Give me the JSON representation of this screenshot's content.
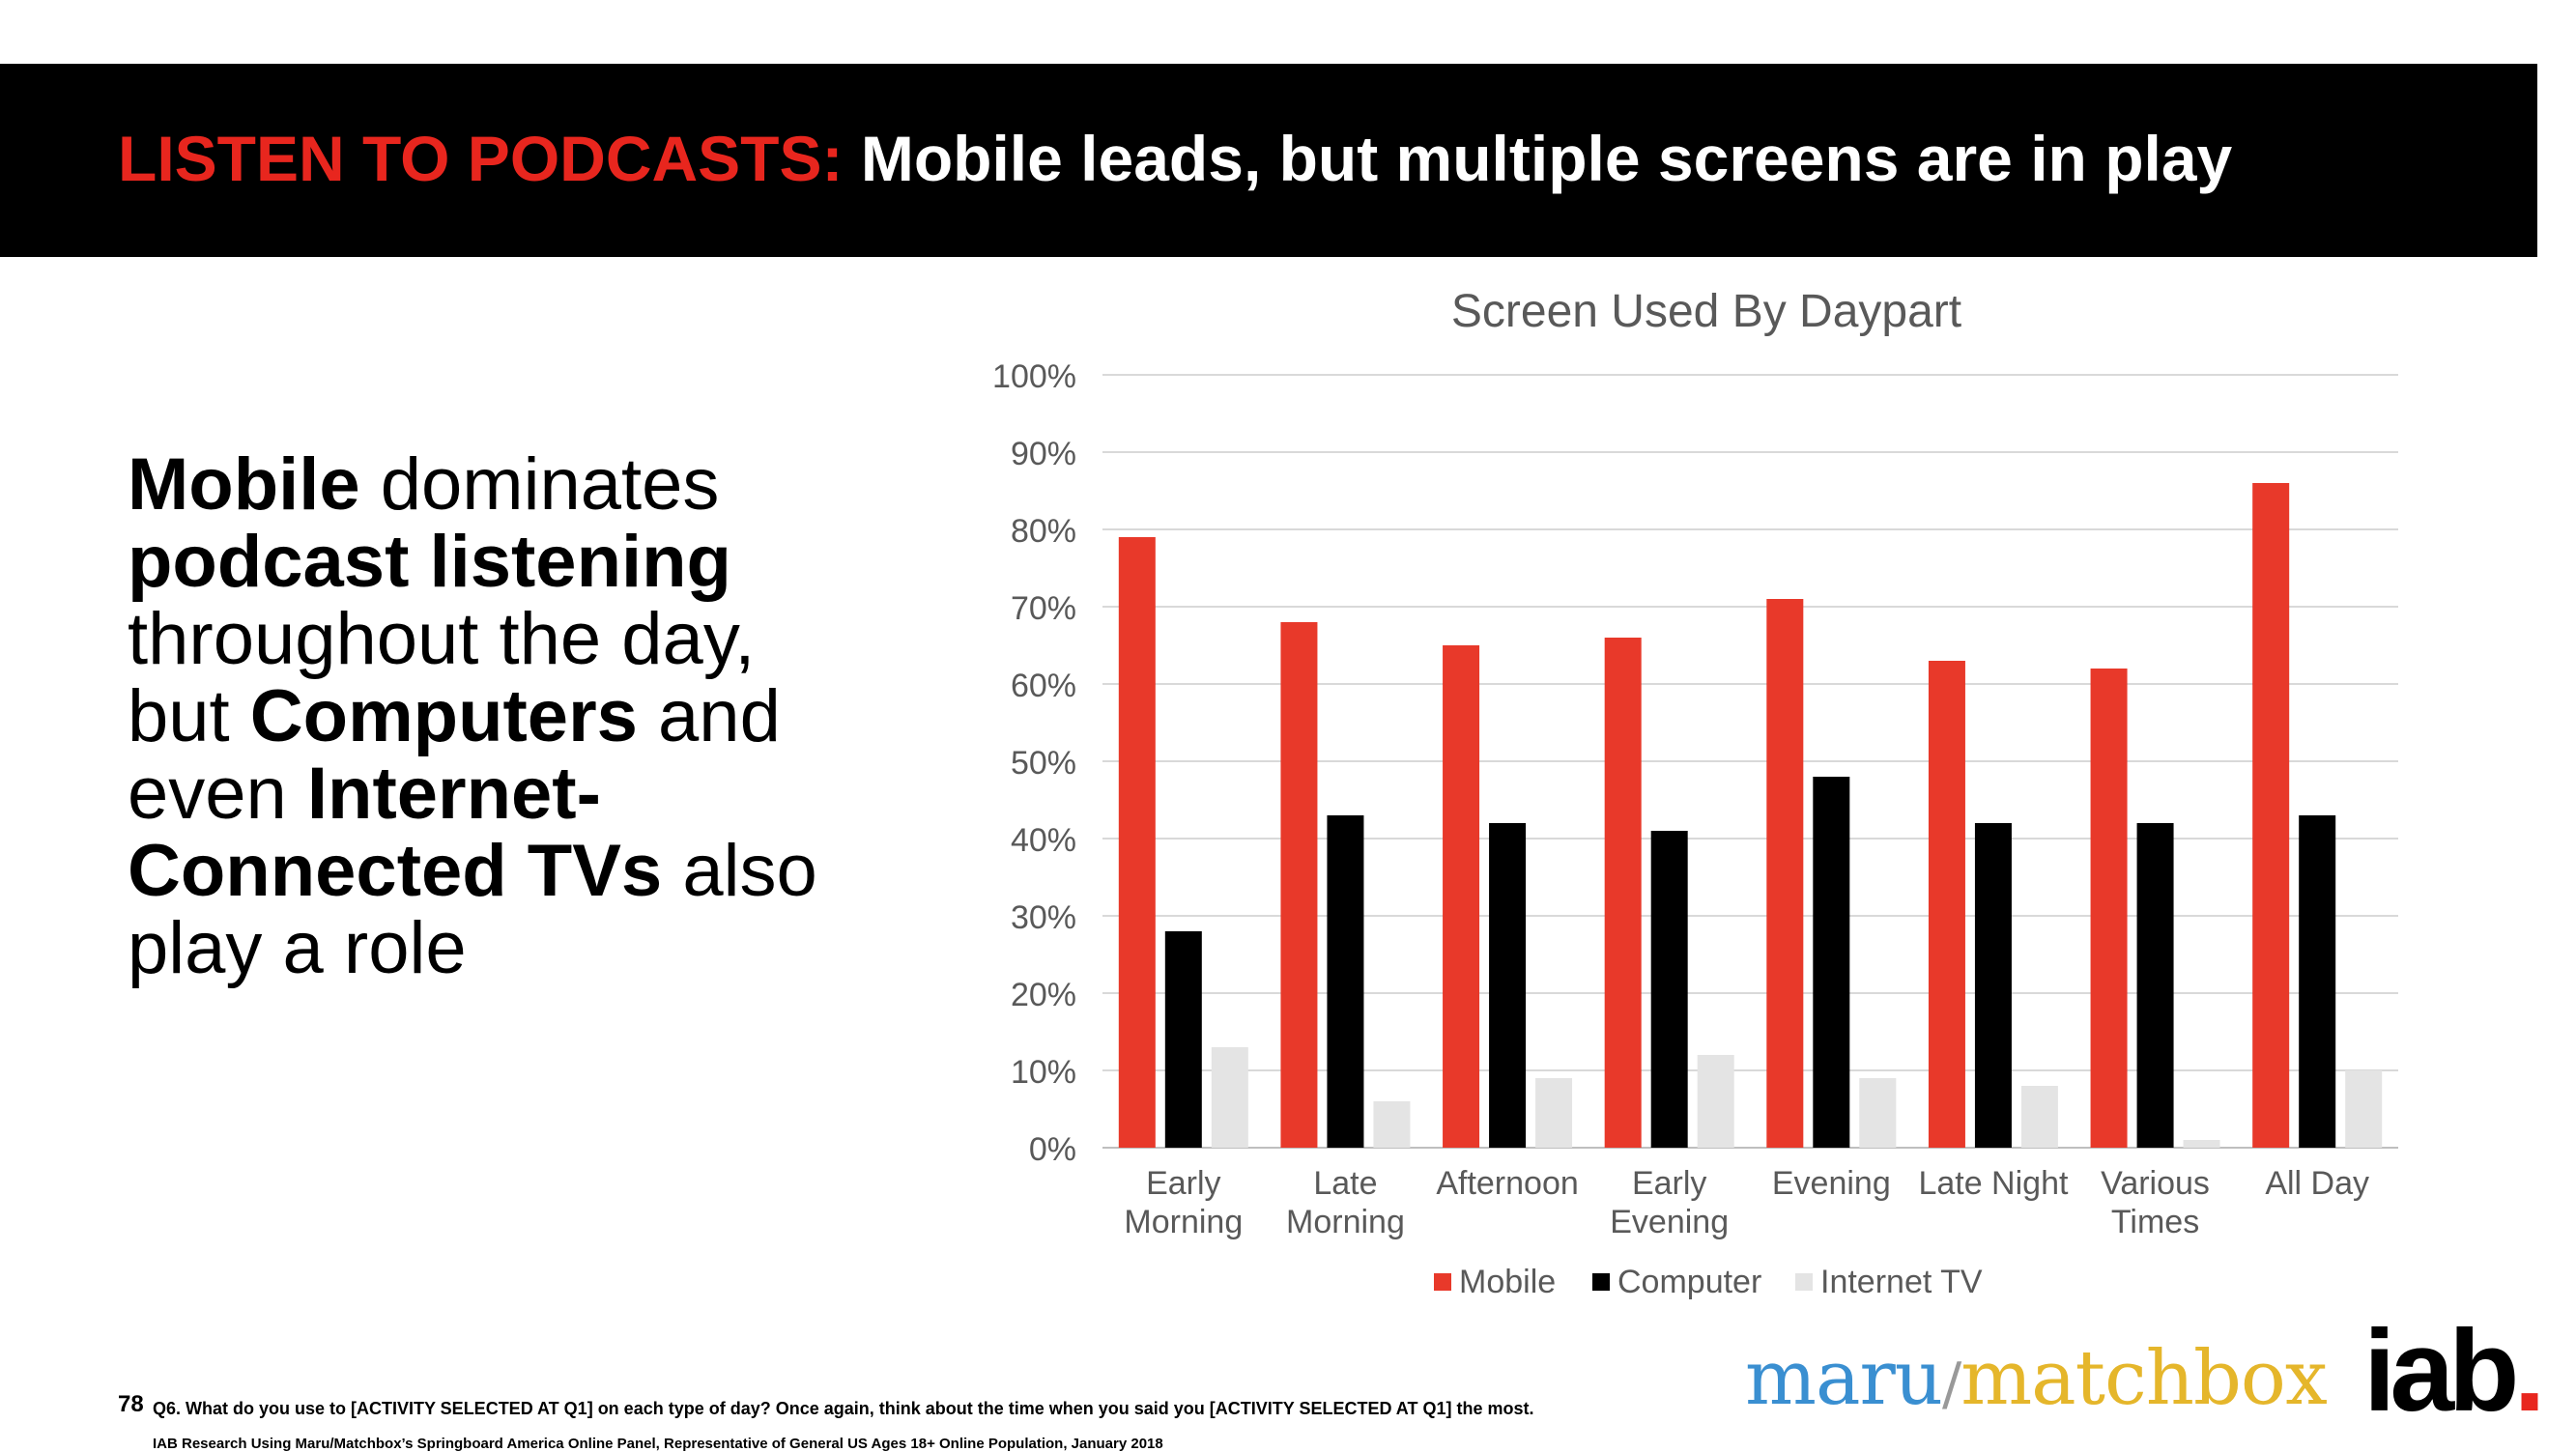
{
  "banner": {
    "title_accent": "LISTEN TO PODCASTS:",
    "title_main": "Mobile leads, but multiple screens are in play"
  },
  "headline": {
    "p1_bold": "Mobile",
    "p2": " dominates ",
    "p3_bold": "podcast listening",
    "p4": " throughout the day, but ",
    "p5_bold": "Computers",
    "p6": " and even ",
    "p7_bold": "Internet-Connected TVs",
    "p8": " also play a role"
  },
  "chart_data": {
    "type": "bar",
    "title": "Screen Used By Daypart",
    "categories": [
      [
        "Early",
        "Morning"
      ],
      [
        "Late",
        "Morning"
      ],
      [
        "Afternoon"
      ],
      [
        "Early",
        "Evening"
      ],
      [
        "Evening"
      ],
      [
        "Late Night"
      ],
      [
        "Various",
        "Times"
      ],
      [
        "All Day"
      ]
    ],
    "series": [
      {
        "name": "Mobile",
        "color": "#e8392a",
        "values": [
          79,
          68,
          65,
          66,
          71,
          63,
          62,
          86
        ]
      },
      {
        "name": "Computer",
        "color": "#000000",
        "values": [
          28,
          43,
          42,
          41,
          48,
          42,
          42,
          43
        ]
      },
      {
        "name": "Internet TV",
        "color": "#e4e4e4",
        "values": [
          13,
          6,
          9,
          12,
          9,
          8,
          1,
          10
        ]
      }
    ],
    "ylim": [
      0,
      100
    ],
    "yticks": [
      0,
      10,
      20,
      30,
      40,
      50,
      60,
      70,
      80,
      90,
      100
    ],
    "ytick_labels": [
      "0%",
      "10%",
      "20%",
      "30%",
      "40%",
      "50%",
      "60%",
      "70%",
      "80%",
      "90%",
      "100%"
    ],
    "xlabel": "",
    "ylabel": "",
    "grid": true,
    "legend": "bottom"
  },
  "footnote": {
    "page_number": "78",
    "question": "Q6. What do you use to [ACTIVITY SELECTED AT Q1] on each type of day?  Once again, think about the time when you said you [ACTIVITY SELECTED AT Q1] the most.",
    "source": "IAB Research Using Maru/Matchbox’s Springboard America Online Panel, Representative of General US Ages 18+ Online Population, January 2018"
  },
  "logos": {
    "maru": "maru",
    "separator": "/",
    "matchbox": "matchbox",
    "iab": "iab",
    "iab_dot": "."
  }
}
